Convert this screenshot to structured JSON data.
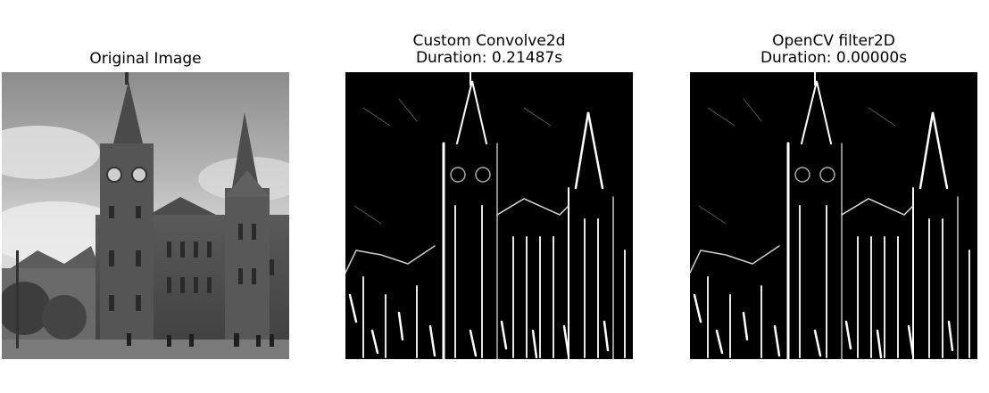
{
  "figure": {
    "panels": [
      {
        "title_lines": [
          "Original Image"
        ],
        "image": "grayscale photograph of a gothic clock tower building"
      },
      {
        "title_lines": [
          "Custom Convolve2d",
          "Duration: 0.21487s"
        ],
        "image": "edge-detection result, white edges on black"
      },
      {
        "title_lines": [
          "OpenCV filter2D",
          "Duration: 0.00000s"
        ],
        "image": "edge-detection result, white edges on black"
      }
    ]
  }
}
